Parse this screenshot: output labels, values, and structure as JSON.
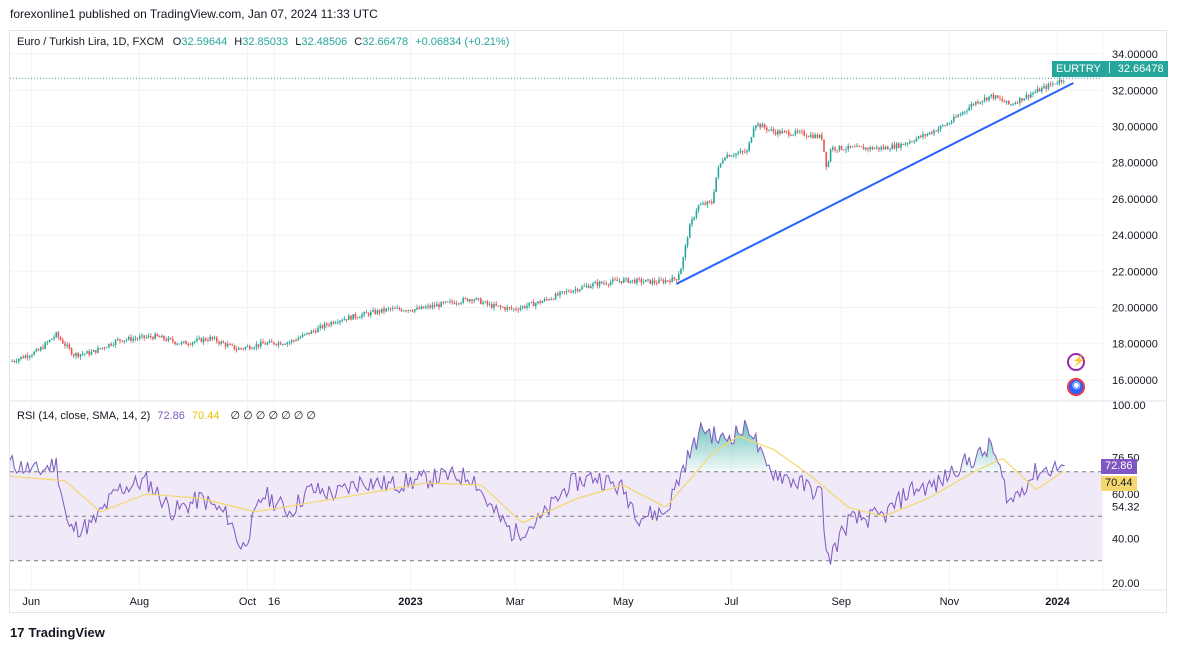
{
  "header": {
    "published_text": "forexonline1 published on TradingView.com, Jan 07, 2024 11:33 UTC"
  },
  "legend": {
    "symbol": "Euro / Turkish Lira, 1D, FXCM",
    "o_label": "O",
    "o_value": "32.59644",
    "h_label": "H",
    "h_value": "32.85033",
    "l_label": "L",
    "l_value": "32.48506",
    "c_label": "C",
    "c_value": "32.66478",
    "change": "+0.06834 (+0.21%)"
  },
  "price_tag": {
    "symbol": "EURTRY",
    "value": "32.66478"
  },
  "rsi_legend": {
    "label": "RSI (14, close, SMA, 14, 2)",
    "rsi_value": "72.86",
    "sma_value": "70.44",
    "empty_markers": "∅ ∅ ∅ ∅ ∅ ∅ ∅"
  },
  "rsi_tags": {
    "rsi": "72.86",
    "sma": "70.44"
  },
  "brand": {
    "name": "TradingView",
    "logo": "17"
  },
  "colors": {
    "up": "#26a69a",
    "down": "#ef5350",
    "trendline": "#2962ff",
    "rsi": "#7e57c2",
    "sma": "#f5d76e",
    "band": "#efe9f8"
  },
  "icons": [
    "lightning-icon",
    "globe-icon"
  ],
  "chart_data": [
    {
      "type": "candlestick",
      "title": "Euro / Turkish Lira, 1D, FXCM",
      "x_ticks": [
        "Jun",
        "Aug",
        "Oct",
        "16",
        "2023",
        "Mar",
        "May",
        "Jul",
        "Sep",
        "Nov",
        "2024"
      ],
      "y_ticks": [
        "16.00000",
        "18.00000",
        "20.00000",
        "22.00000",
        "24.00000",
        "26.00000",
        "28.00000",
        "30.00000",
        "32.00000",
        "34.00000"
      ],
      "ylim": [
        15.0,
        34.5
      ],
      "last_price": 32.66478,
      "close_path": [
        [
          "2022-05-20",
          17.0
        ],
        [
          "2022-06-05",
          17.6
        ],
        [
          "2022-06-15",
          18.5
        ],
        [
          "2022-06-25",
          17.4
        ],
        [
          "2022-07-05",
          17.5
        ],
        [
          "2022-07-20",
          18.2
        ],
        [
          "2022-08-10",
          18.4
        ],
        [
          "2022-08-25",
          18.0
        ],
        [
          "2022-09-10",
          18.3
        ],
        [
          "2022-09-25",
          17.7
        ],
        [
          "2022-10-10",
          18.0
        ],
        [
          "2022-10-25",
          18.1
        ],
        [
          "2022-11-05",
          18.6
        ],
        [
          "2022-11-20",
          19.3
        ],
        [
          "2022-12-05",
          19.6
        ],
        [
          "2022-12-20",
          19.9
        ],
        [
          "2023-01-05",
          19.9
        ],
        [
          "2023-01-20",
          20.2
        ],
        [
          "2023-02-05",
          20.5
        ],
        [
          "2023-02-15",
          20.1
        ],
        [
          "2023-02-28",
          19.9
        ],
        [
          "2023-03-15",
          20.3
        ],
        [
          "2023-03-31",
          20.9
        ],
        [
          "2023-04-15",
          21.3
        ],
        [
          "2023-05-01",
          21.5
        ],
        [
          "2023-05-20",
          21.4
        ],
        [
          "2023-05-31",
          21.6
        ],
        [
          "2023-06-03",
          22.3
        ],
        [
          "2023-06-07",
          24.3
        ],
        [
          "2023-06-12",
          25.6
        ],
        [
          "2023-06-20",
          25.8
        ],
        [
          "2023-06-23",
          27.5
        ],
        [
          "2023-06-27",
          28.4
        ],
        [
          "2023-07-10",
          28.6
        ],
        [
          "2023-07-14",
          30.2
        ],
        [
          "2023-07-25",
          29.7
        ],
        [
          "2023-08-10",
          29.6
        ],
        [
          "2023-08-21",
          29.4
        ],
        [
          "2023-08-24",
          27.6
        ],
        [
          "2023-08-26",
          28.8
        ],
        [
          "2023-09-10",
          28.8
        ],
        [
          "2023-09-25",
          28.8
        ],
        [
          "2023-10-05",
          29.0
        ],
        [
          "2023-10-20",
          29.6
        ],
        [
          "2023-11-01",
          30.2
        ],
        [
          "2023-11-15",
          31.3
        ],
        [
          "2023-11-25",
          31.7
        ],
        [
          "2023-12-05",
          31.2
        ],
        [
          "2023-12-15",
          31.7
        ],
        [
          "2024-01-05",
          32.66
        ]
      ],
      "trendline": [
        [
          "2023-05-31",
          21.3
        ],
        [
          "2024-01-10",
          32.4
        ]
      ],
      "price_line": 32.66478
    },
    {
      "type": "line",
      "title": "RSI (14, close, SMA, 14, 2)",
      "y_ticks": [
        "20.00",
        "40.00",
        "54.32",
        "60.00",
        "76.50",
        "100.00"
      ],
      "ylim": [
        20,
        100
      ],
      "bands": [
        30,
        50,
        70
      ],
      "series": [
        {
          "name": "RSI",
          "points": [
            [
              "2022-05-20",
              74
            ],
            [
              "2022-06-05",
              70
            ],
            [
              "2022-06-15",
              74
            ],
            [
              "2022-06-22",
              44
            ],
            [
              "2022-07-05",
              46
            ],
            [
              "2022-07-20",
              62
            ],
            [
              "2022-08-05",
              66
            ],
            [
              "2022-08-20",
              52
            ],
            [
              "2022-09-05",
              58
            ],
            [
              "2022-09-20",
              50
            ],
            [
              "2022-09-28",
              35
            ],
            [
              "2022-10-10",
              60
            ],
            [
              "2022-10-25",
              52
            ],
            [
              "2022-11-05",
              62
            ],
            [
              "2022-11-20",
              60
            ],
            [
              "2022-12-05",
              66
            ],
            [
              "2022-12-20",
              64
            ],
            [
              "2023-01-05",
              66
            ],
            [
              "2023-01-20",
              68
            ],
            [
              "2023-02-05",
              68
            ],
            [
              "2023-02-15",
              54
            ],
            [
              "2023-02-28",
              42
            ],
            [
              "2023-03-15",
              48
            ],
            [
              "2023-03-31",
              64
            ],
            [
              "2023-04-15",
              68
            ],
            [
              "2023-05-01",
              62
            ],
            [
              "2023-05-10",
              50
            ],
            [
              "2023-05-25",
              52
            ],
            [
              "2023-06-05",
              74
            ],
            [
              "2023-06-15",
              90
            ],
            [
              "2023-06-25",
              84
            ],
            [
              "2023-07-05",
              88
            ],
            [
              "2023-07-12",
              90
            ],
            [
              "2023-07-20",
              72
            ],
            [
              "2023-08-05",
              66
            ],
            [
              "2023-08-21",
              60
            ],
            [
              "2023-08-24",
              29
            ],
            [
              "2023-09-05",
              48
            ],
            [
              "2023-09-25",
              50
            ],
            [
              "2023-10-10",
              62
            ],
            [
              "2023-10-25",
              64
            ],
            [
              "2023-11-05",
              72
            ],
            [
              "2023-11-20",
              78
            ],
            [
              "2023-11-25",
              82
            ],
            [
              "2023-12-05",
              56
            ],
            [
              "2023-12-20",
              70
            ],
            [
              "2024-01-05",
              72.86
            ]
          ]
        },
        {
          "name": "SMA",
          "points": [
            [
              "2022-05-20",
              68
            ],
            [
              "2022-06-20",
              66
            ],
            [
              "2022-07-10",
              52
            ],
            [
              "2022-08-05",
              60
            ],
            [
              "2022-09-05",
              58
            ],
            [
              "2022-10-05",
              52
            ],
            [
              "2022-11-05",
              56
            ],
            [
              "2022-12-05",
              60
            ],
            [
              "2023-01-10",
              65
            ],
            [
              "2023-02-10",
              64
            ],
            [
              "2023-03-05",
              47
            ],
            [
              "2023-04-05",
              58
            ],
            [
              "2023-05-01",
              64
            ],
            [
              "2023-05-25",
              54
            ],
            [
              "2023-06-20",
              78
            ],
            [
              "2023-07-05",
              86
            ],
            [
              "2023-07-25",
              80
            ],
            [
              "2023-08-15",
              68
            ],
            [
              "2023-09-05",
              54
            ],
            [
              "2023-09-25",
              50
            ],
            [
              "2023-10-20",
              58
            ],
            [
              "2023-11-15",
              70
            ],
            [
              "2023-12-01",
              76
            ],
            [
              "2023-12-20",
              62
            ],
            [
              "2024-01-05",
              70.44
            ]
          ]
        }
      ]
    }
  ]
}
